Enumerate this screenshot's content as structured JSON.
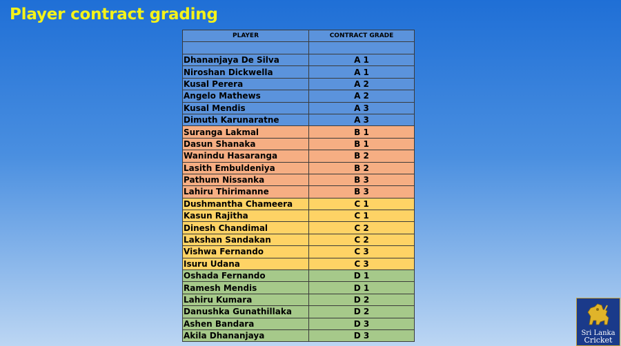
{
  "title": "Player contract grading",
  "table": {
    "headers": [
      "PLAYER",
      "CONTRACT GRADE"
    ],
    "rows": [
      {
        "player": "Dhananjaya De Silva",
        "grade": "A 1",
        "group": "blue"
      },
      {
        "player": "Niroshan Dickwella",
        "grade": "A 1",
        "group": "blue"
      },
      {
        "player": "Kusal Perera",
        "grade": "A 2",
        "group": "blue"
      },
      {
        "player": "Angelo Mathews",
        "grade": "A 2",
        "group": "blue"
      },
      {
        "player": "Kusal Mendis",
        "grade": "A 3",
        "group": "blue"
      },
      {
        "player": "Dimuth Karunaratne",
        "grade": "A 3",
        "group": "blue"
      },
      {
        "player": "Suranga Lakmal",
        "grade": "B 1",
        "group": "orange"
      },
      {
        "player": "Dasun Shanaka",
        "grade": "B 1",
        "group": "orange"
      },
      {
        "player": "Wanindu Hasaranga",
        "grade": "B 2",
        "group": "orange"
      },
      {
        "player": "Lasith Embuldeniya",
        "grade": "B 2",
        "group": "orange"
      },
      {
        "player": "Pathum Nissanka",
        "grade": "B 3",
        "group": "orange"
      },
      {
        "player": "Lahiru Thirimanne",
        "grade": "B 3",
        "group": "orange"
      },
      {
        "player": "Dushmantha Chameera",
        "grade": "C 1",
        "group": "yellow"
      },
      {
        "player": "Kasun Rajitha",
        "grade": "C 1",
        "group": "yellow"
      },
      {
        "player": "Dinesh Chandimal",
        "grade": "C 2",
        "group": "yellow"
      },
      {
        "player": "Lakshan Sandakan",
        "grade": "C 2",
        "group": "yellow"
      },
      {
        "player": "Vishwa Fernando",
        "grade": "C 3",
        "group": "yellow"
      },
      {
        "player": "Isuru Udana",
        "grade": "C 3",
        "group": "yellow"
      },
      {
        "player": "Oshada Fernando",
        "grade": "D 1",
        "group": "green"
      },
      {
        "player": "Ramesh Mendis",
        "grade": "D 1",
        "group": "green"
      },
      {
        "player": "Lahiru Kumara",
        "grade": "D 2",
        "group": "green"
      },
      {
        "player": "Danushka Gunathillaka",
        "grade": "D 2",
        "group": "green"
      },
      {
        "player": "Ashen Bandara",
        "grade": "D 3",
        "group": "green"
      },
      {
        "player": "Akila Dhananjaya",
        "grade": "D 3",
        "group": "green"
      }
    ]
  },
  "logo": {
    "line1": "Sri Lanka",
    "line2": "Cricket",
    "icon": "lion-icon"
  },
  "colors": {
    "title": "#f4f21a",
    "blue": "#5b93dc",
    "orange": "#f6ae83",
    "yellow": "#fed365",
    "green": "#a6c98a"
  }
}
